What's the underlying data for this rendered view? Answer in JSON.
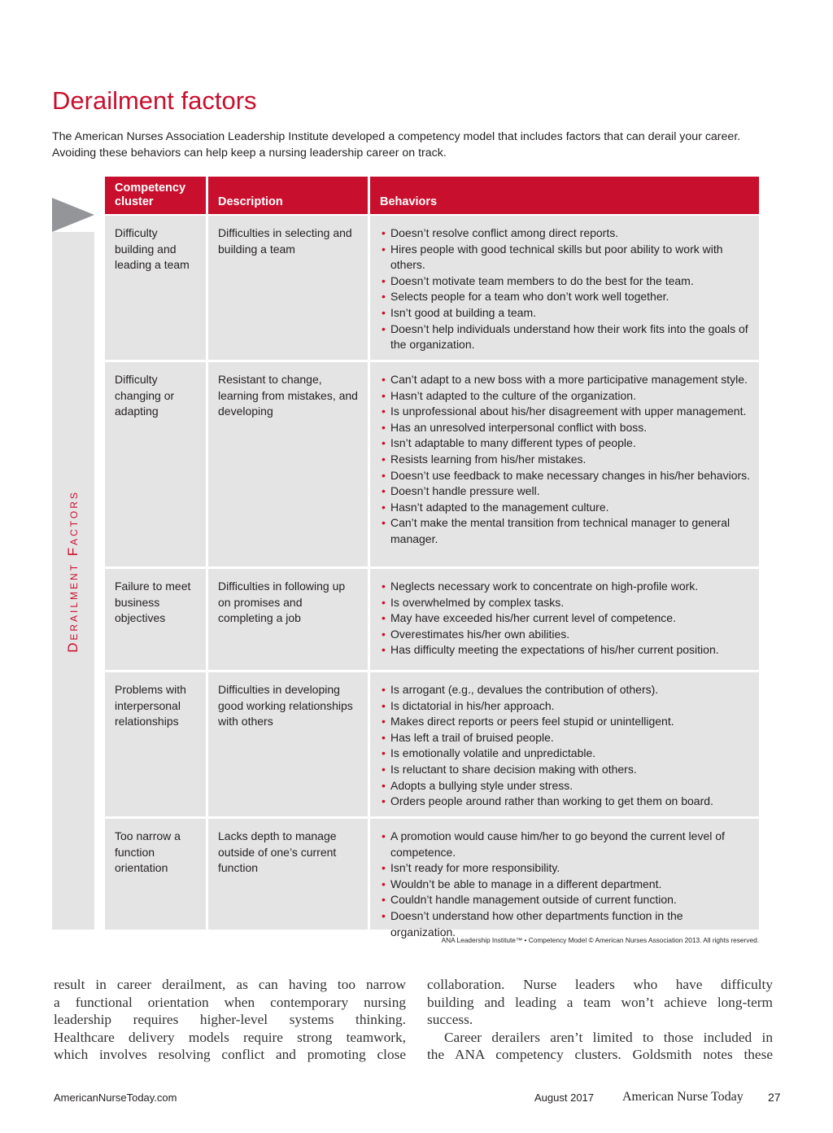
{
  "header": {
    "title": "Derailment factors",
    "intro": "The American Nurses Association Leadership Institute developed a competency model that includes factors that can derail your career. Avoiding these behaviors can help keep a nursing leadership career on track."
  },
  "sidebar": "Derailment Factors",
  "table": {
    "columns": [
      "Competency cluster",
      "Description",
      "Behaviors"
    ],
    "rows": [
      {
        "cluster": "Difficulty building and leading a team",
        "description": "Difficulties in selecting and building a team",
        "behaviors": [
          "Doesn’t resolve conflict among direct reports.",
          "Hires people with good technical skills but poor ability to work with others.",
          "Doesn’t motivate team members to do the best for the team.",
          "Selects people for a team who don’t work well together.",
          "Isn’t good at building a team.",
          "Doesn’t help individuals understand how their work fits into the goals of the organization."
        ]
      },
      {
        "cluster": "Difficulty changing or adapting",
        "description": "Resistant to change, learning from mistakes, and developing",
        "behaviors": [
          "Can’t adapt to a new boss with a more participative management style.",
          "Hasn’t adapted to the culture of the organization.",
          "Is unprofessional about his/her disagreement with upper management.",
          "Has an unresolved interpersonal conflict with boss.",
          "Isn’t adaptable to many different types of people.",
          "Resists learning from his/her mistakes.",
          "Doesn’t use feedback to make necessary changes in his/her behaviors.",
          "Doesn’t handle pressure well.",
          "Hasn’t adapted to the management culture.",
          "Can’t make the mental transition from technical manager to general manager."
        ]
      },
      {
        "cluster": "Failure to meet business objectives",
        "description": "Difficulties in following up on promises and completing a job",
        "behaviors": [
          "Neglects necessary work to concentrate on high-profile work.",
          "Is overwhelmed by complex tasks.",
          "May have exceeded his/her current level of competence.",
          "Overestimates his/her own abilities.",
          "Has difficulty meeting the expectations of his/her current position."
        ]
      },
      {
        "cluster": "Problems with interpersonal relationships",
        "description": "Difficulties in developing good working relationships with others",
        "behaviors": [
          "Is arrogant (e.g., devalues the contribution of others).",
          "Is dictatorial in his/her approach.",
          "Makes direct reports or peers feel stupid or unintelligent.",
          "Has left a trail of bruised people.",
          "Is emotionally volatile and unpredictable.",
          "Is reluctant to share decision making with others.",
          "Adopts a bullying style under stress.",
          "Orders people around rather than working to get them on board."
        ]
      },
      {
        "cluster": "Too narrow a function orientation",
        "description": "Lacks depth to manage outside of one’s current function",
        "behaviors": [
          "A promotion would cause him/her to go beyond the current level of competence.",
          "Isn’t ready for more responsibility.",
          "Wouldn’t be able to manage in a different department.",
          "Couldn’t handle management outside of current function.",
          "Doesn’t understand how other departments function in the organization."
        ]
      }
    ]
  },
  "credit": "ANA Leadership Institute™ • Competency Model © American Nurses Association 2013. All rights reserved.",
  "body": {
    "left": [
      "result in career derailment, as can having too narrow",
      "a functional orientation when contemporary nursing",
      "leadership requires higher-level systems thinking.",
      "Healthcare delivery models require strong teamwork,",
      "which involves resolving conflict and promoting close"
    ],
    "right": [
      "collaboration. Nurse leaders who have difficulty",
      "building and leading a team won’t achieve long-term",
      "success.",
      "Career derailers aren’t limited to those included in",
      "the ANA competency clusters. Goldsmith notes these"
    ]
  },
  "footer": {
    "website": "AmericanNurseToday.com",
    "date": "August 2017",
    "magazine": "American Nurse Today",
    "page": "27"
  }
}
